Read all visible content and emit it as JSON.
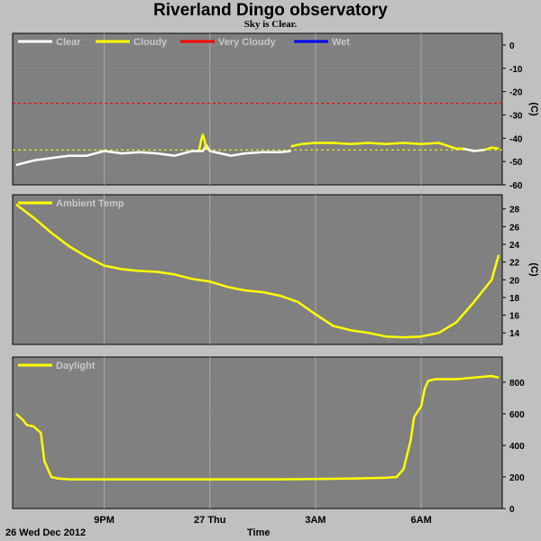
{
  "page": {
    "title": "Riverland Dingo observatory",
    "subtitle": "Sky is Clear.",
    "date_label": "26 Wed Dec 2012",
    "x_axis_label": "Time",
    "background_color": "#c0c0c0",
    "plot_color": "#808080"
  },
  "chart_data": [
    {
      "type": "line",
      "ylabel": "(C)",
      "ylim": [
        -60,
        5
      ],
      "yticks": [
        0,
        -10,
        -20,
        -30,
        -40,
        -50,
        -60
      ],
      "xlim": [
        18.4,
        32.3
      ],
      "xticks": [
        {
          "x": 21,
          "label": "9PM"
        },
        {
          "x": 24,
          "label": "27 Thu"
        },
        {
          "x": 27,
          "label": "3AM"
        },
        {
          "x": 30,
          "label": "6AM"
        }
      ],
      "grid": true,
      "legend": [
        {
          "name": "Clear",
          "color": "#ffffff"
        },
        {
          "name": "Cloudy",
          "color": "#ffff00"
        },
        {
          "name": "Very Cloudy",
          "color": "#ff0000"
        },
        {
          "name": "Wet",
          "color": "#0000ff"
        }
      ],
      "thresholds": [
        {
          "y": -25,
          "color": "#ff0000",
          "style": "dashed"
        },
        {
          "y": -45,
          "color": "#ffff00",
          "style": "dashed"
        }
      ],
      "series": [
        {
          "name": "Clear",
          "color": "#ffffff",
          "x": [
            18.5,
            19,
            19.5,
            20,
            20.5,
            21,
            21.5,
            22,
            22.5,
            23,
            23.5,
            23.8,
            23.9,
            24,
            24.3,
            24.6,
            25,
            25.5,
            26,
            26.3
          ],
          "y": [
            -51.5,
            -49.5,
            -48.5,
            -47.5,
            -47.5,
            -45.5,
            -46.5,
            -46,
            -46.5,
            -47.5,
            -45.5,
            -45.5,
            -43,
            -45.5,
            -46.5,
            -47.5,
            -46.5,
            -46,
            -46,
            -45.5
          ]
        },
        {
          "name": "Cloudy",
          "color": "#ffff00",
          "x": [
            23.7,
            23.75,
            23.8,
            23.85,
            23.9
          ],
          "y": [
            -45,
            -41,
            -38.5,
            -41,
            -45
          ]
        },
        {
          "name": "Cloudy",
          "color": "#ffff00",
          "x": [
            26.3,
            26.6,
            27,
            27.5,
            28,
            28.5,
            29,
            29.5,
            30,
            30.5,
            31,
            31.2
          ],
          "y": [
            -43.5,
            -42.5,
            -42,
            -42,
            -42.5,
            -42,
            -42.5,
            -42,
            -42.5,
            -42,
            -44.5,
            -44.5
          ]
        },
        {
          "name": "Clear",
          "color": "#ffffff",
          "x": [
            31.2,
            31.5,
            31.8
          ],
          "y": [
            -44.5,
            -45.5,
            -45
          ]
        },
        {
          "name": "Cloudy",
          "color": "#ffff00",
          "x": [
            31.8,
            32,
            32.2
          ],
          "y": [
            -45,
            -44,
            -44.5
          ]
        }
      ]
    },
    {
      "type": "line",
      "ylabel": "(C)",
      "ylim": [
        12.7,
        29.6
      ],
      "yticks": [
        28,
        26,
        24,
        22,
        20,
        18,
        16,
        14
      ],
      "xlim": [
        18.4,
        32.3
      ],
      "xticks": [
        {
          "x": 21,
          "label": "9PM"
        },
        {
          "x": 24,
          "label": "27 Thu"
        },
        {
          "x": 27,
          "label": "3AM"
        },
        {
          "x": 30,
          "label": "6AM"
        }
      ],
      "grid": true,
      "legend": [
        {
          "name": "Ambient Temp",
          "color": "#ffff00"
        }
      ],
      "series": [
        {
          "name": "Ambient Temp",
          "color": "#ffff00",
          "x": [
            18.5,
            19,
            19.5,
            20,
            20.5,
            21,
            21.5,
            22,
            22.5,
            23,
            23.5,
            24,
            24.5,
            25,
            25.5,
            26,
            26.5,
            27,
            27.5,
            28,
            28.5,
            29,
            29.5,
            30,
            30.5,
            31,
            31.5,
            32,
            32.2
          ],
          "y": [
            28.5,
            27,
            25.3,
            23.8,
            22.6,
            21.6,
            21.2,
            21,
            20.9,
            20.6,
            20.1,
            19.8,
            19.2,
            18.8,
            18.6,
            18.2,
            17.5,
            16.1,
            14.8,
            14.3,
            14,
            13.6,
            13.5,
            13.6,
            14,
            15.2,
            17.5,
            20,
            22.8
          ]
        }
      ]
    },
    {
      "type": "line",
      "ylabel": "",
      "ylim": [
        0,
        960
      ],
      "yticks": [
        800,
        600,
        400,
        200,
        0
      ],
      "xlim": [
        18.4,
        32.3
      ],
      "xticks": [
        {
          "x": 21,
          "label": "9PM"
        },
        {
          "x": 24,
          "label": "27 Thu"
        },
        {
          "x": 27,
          "label": "3AM"
        },
        {
          "x": 30,
          "label": "6AM"
        }
      ],
      "grid": true,
      "legend": [
        {
          "name": "Daylight",
          "color": "#ffff00"
        }
      ],
      "series": [
        {
          "name": "Daylight",
          "color": "#ffff00",
          "x": [
            18.5,
            18.7,
            18.8,
            19,
            19.2,
            19.3,
            19.5,
            19.7,
            20,
            22,
            24,
            26,
            28,
            29,
            29.3,
            29.5,
            29.7,
            29.8,
            30,
            30.1,
            30.2,
            30.4,
            31,
            31.5,
            32,
            32.2
          ],
          "y": [
            600,
            560,
            530,
            520,
            480,
            300,
            200,
            190,
            185,
            185,
            185,
            185,
            190,
            195,
            200,
            250,
            430,
            580,
            650,
            760,
            810,
            820,
            820,
            830,
            840,
            830
          ]
        }
      ]
    }
  ]
}
